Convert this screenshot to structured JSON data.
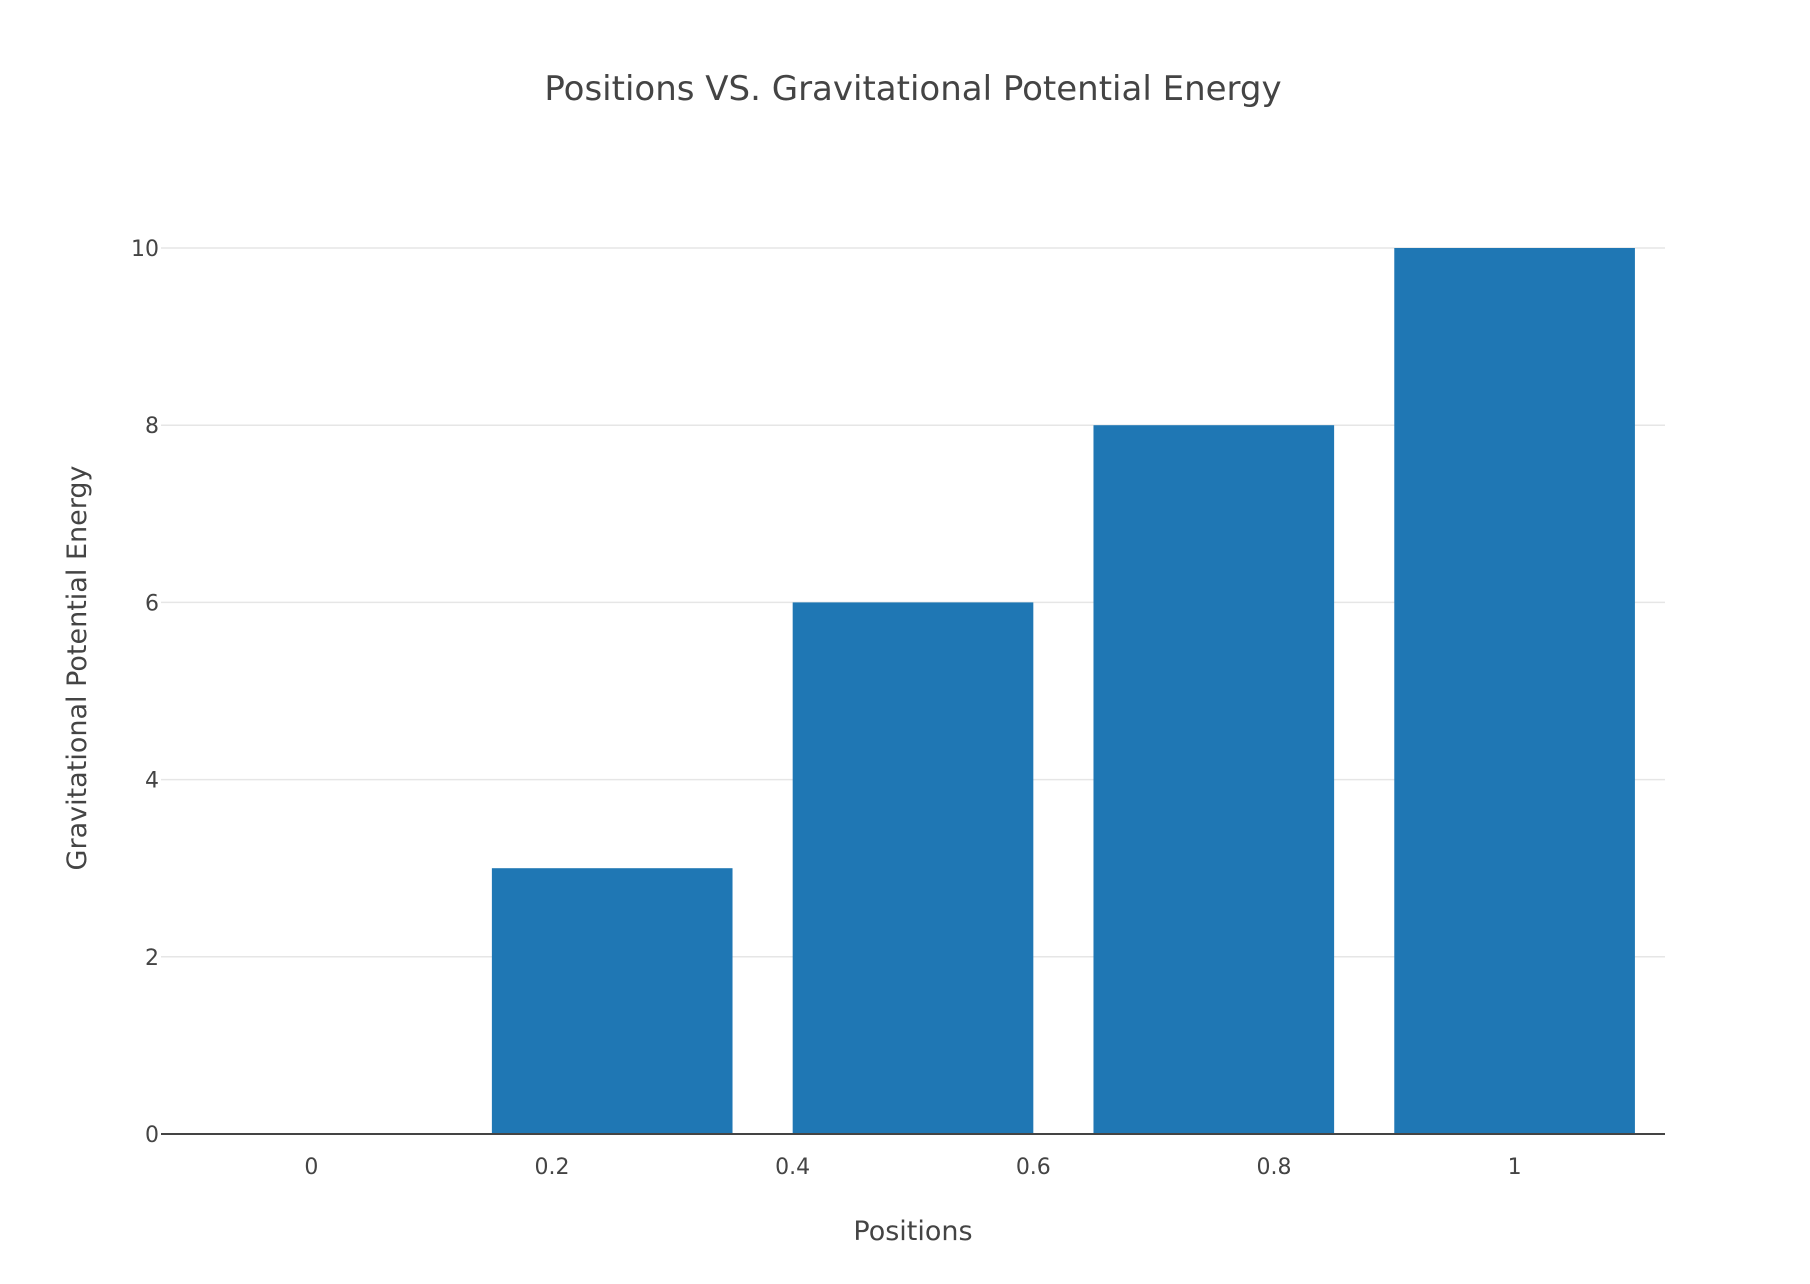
{
  "chart_data": {
    "type": "bar",
    "title": "Positions VS. Gravitational Potential Energy",
    "xlabel": "Positions",
    "ylabel": "Gravitational Potential Energy",
    "x": [
      0,
      0.25,
      0.5,
      0.75,
      1
    ],
    "values": [
      0,
      3,
      6,
      8,
      10
    ],
    "xlim": [
      -0.125,
      1.125
    ],
    "ylim": [
      0,
      10
    ],
    "x_ticks": [
      {
        "value": 0,
        "label": "0"
      },
      {
        "value": 0.2,
        "label": "0.2"
      },
      {
        "value": 0.4,
        "label": "0.4"
      },
      {
        "value": 0.6,
        "label": "0.6"
      },
      {
        "value": 0.8,
        "label": "0.8"
      },
      {
        "value": 1,
        "label": "1"
      }
    ],
    "y_ticks": [
      {
        "value": 0,
        "label": "0"
      },
      {
        "value": 2,
        "label": "2"
      },
      {
        "value": 4,
        "label": "4"
      },
      {
        "value": 6,
        "label": "6"
      },
      {
        "value": 8,
        "label": "8"
      },
      {
        "value": 10,
        "label": "10"
      }
    ],
    "bar_color": "#1f77b4",
    "grid": true,
    "legend": "none"
  }
}
